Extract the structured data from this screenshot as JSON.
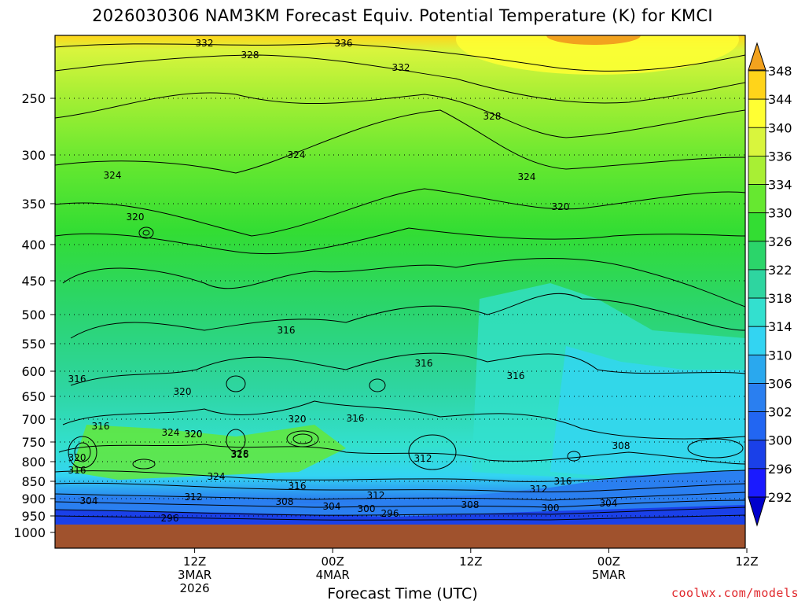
{
  "chart_data": {
    "type": "heatmap",
    "title": "2026030306 NAM3KM Forecast Equiv. Potential Temperature (K) for KMCI",
    "xlabel": "Forecast Time (UTC)",
    "ylabel": "",
    "y_axis": {
      "scale": "pressure",
      "ticks": [
        250,
        300,
        350,
        400,
        450,
        500,
        550,
        600,
        650,
        700,
        750,
        800,
        850,
        900,
        950,
        1000
      ],
      "range": [
        200,
        1000
      ]
    },
    "x_axis": {
      "range_hours": [
        -6,
        54
      ],
      "ticks": [
        {
          "hour": 6,
          "lines": [
            "12Z",
            "3MAR",
            "2026"
          ]
        },
        {
          "hour": 18,
          "lines": [
            "00Z",
            "4MAR"
          ]
        },
        {
          "hour": 30,
          "lines": [
            "12Z"
          ]
        },
        {
          "hour": 42,
          "lines": [
            "00Z",
            "5MAR"
          ]
        },
        {
          "hour": 54,
          "lines": [
            "12Z"
          ]
        }
      ]
    },
    "colorbar": {
      "levels": [
        348,
        344,
        340,
        336,
        334,
        330,
        326,
        322,
        318,
        314,
        310,
        306,
        302,
        300,
        296,
        292
      ],
      "colors": [
        "#f2a21e",
        "#ffd41a",
        "#ffff33",
        "#d9f53d",
        "#a8ef34",
        "#66e830",
        "#33dd33",
        "#2bd56a",
        "#2ed5a0",
        "#33e0cf",
        "#33d4f2",
        "#2aa8ee",
        "#2a7ff0",
        "#2266f2",
        "#1a40e8",
        "#1a1aff",
        "#0000cc"
      ]
    },
    "contour_labels": [
      332,
      336,
      328,
      332,
      328,
      324,
      324,
      324,
      320,
      320,
      316,
      316,
      316,
      320,
      316,
      316,
      316,
      320,
      324,
      320,
      316,
      328,
      324,
      320,
      316,
      312,
      312,
      312,
      316,
      308,
      320,
      316,
      304,
      312,
      308,
      304,
      300,
      296,
      308,
      300,
      304,
      296
    ],
    "grid": true,
    "ground_color": "#a0522d",
    "watermark": "coolwx.com/models"
  }
}
